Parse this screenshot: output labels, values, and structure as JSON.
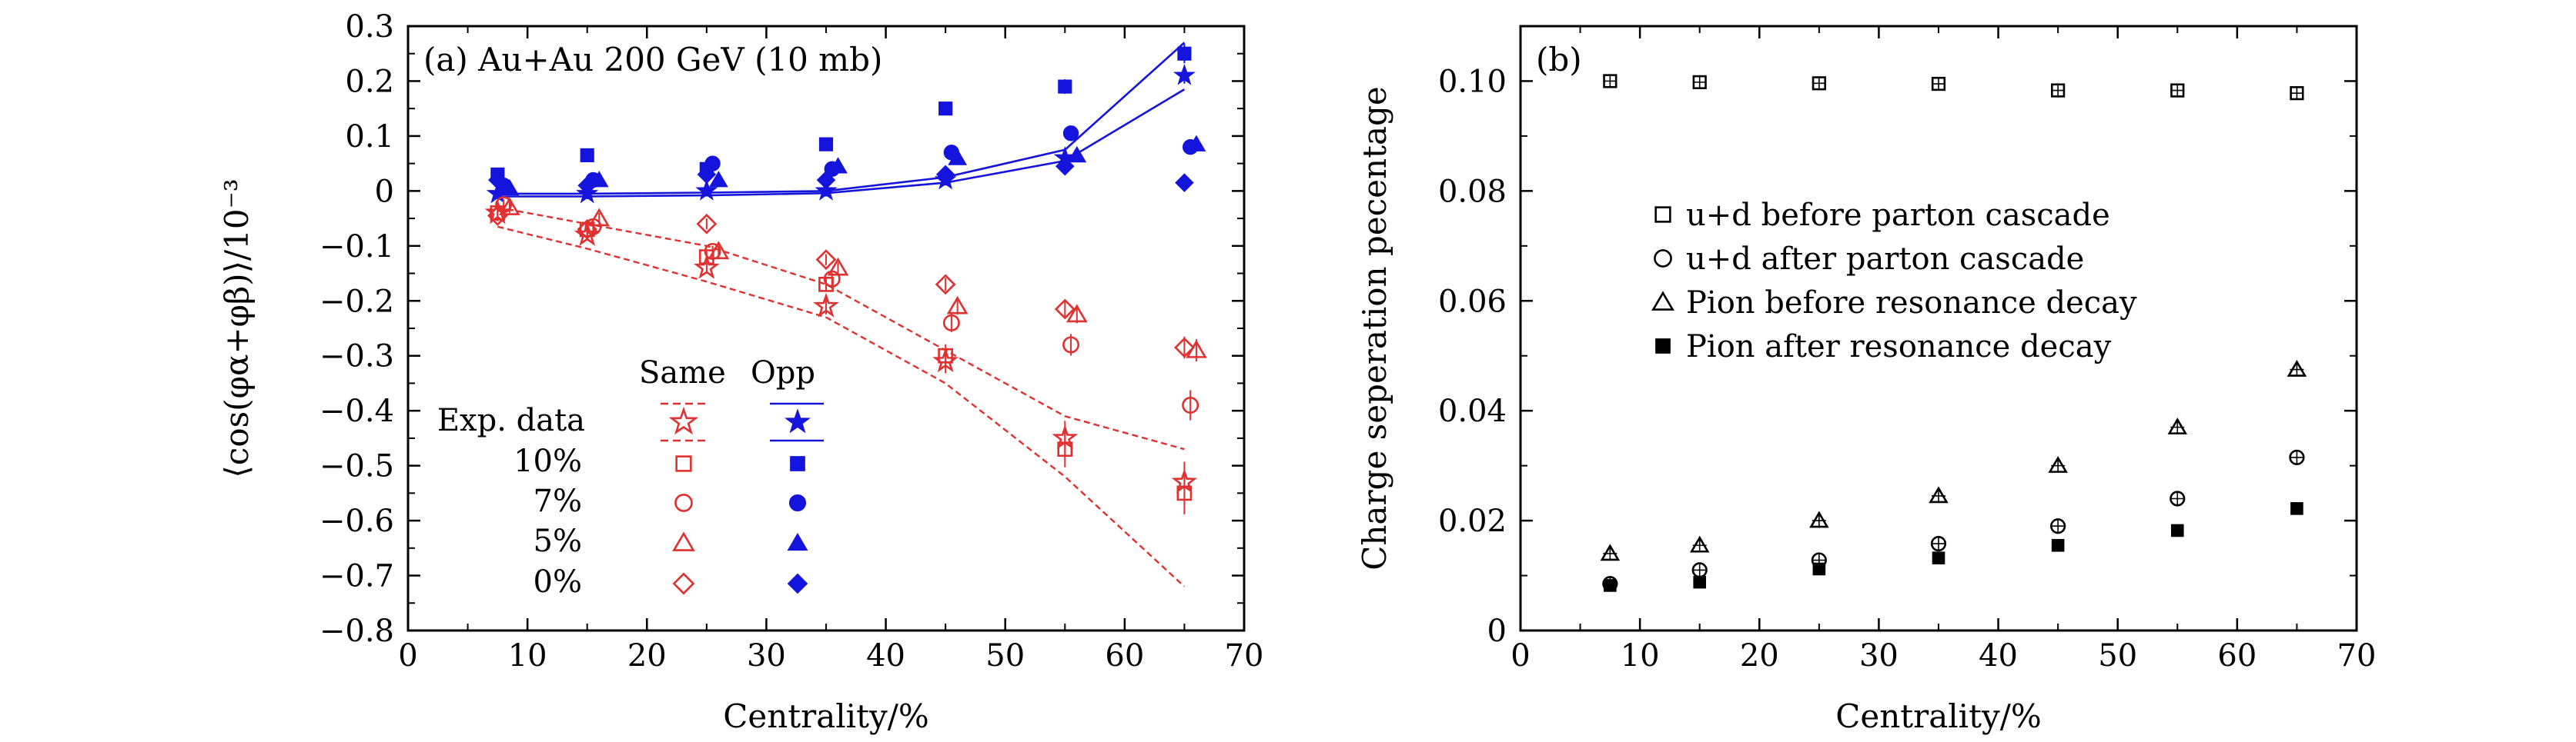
{
  "colors": {
    "red": "#e03030",
    "blue": "#1414dc",
    "black": "#000000"
  },
  "chart_data": [
    {
      "type": "scatter",
      "panel_label": "(a) Au+Au 200 GeV (10 mb)",
      "xlabel": "Centrality/%",
      "ylabel": "⟨cos(φα+φβ)⟩/10⁻³",
      "xlim": [
        0,
        70
      ],
      "ylim": [
        -0.8,
        0.3
      ],
      "xticks": [
        0,
        10,
        20,
        30,
        40,
        50,
        60,
        70
      ],
      "xtick_labels": [
        "0",
        "10",
        "20",
        "30",
        "40",
        "50",
        "60",
        "70"
      ],
      "yticks": [
        -0.8,
        -0.7,
        -0.6,
        -0.5,
        -0.4,
        -0.3,
        -0.2,
        -0.1,
        0,
        0.1,
        0.2,
        0.3
      ],
      "ytick_labels": [
        "−0.8",
        "−0.7",
        "−0.6",
        "−0.5",
        "−0.4",
        "−0.3",
        "−0.2",
        "−0.1",
        "0",
        "0.1",
        "0.2",
        "0.3"
      ],
      "legend": {
        "col_same": "Same",
        "col_opp": "Opp",
        "rows": [
          "Exp. data",
          "10%",
          "7%",
          "5%",
          "0%"
        ]
      },
      "series": [
        {
          "name": "Exp. data Same",
          "color": "red",
          "marker": "star-open",
          "x": [
            7.5,
            15,
            25,
            35,
            45,
            55,
            65
          ],
          "y": [
            -0.04,
            -0.08,
            -0.14,
            -0.21,
            -0.31,
            -0.45,
            -0.53
          ]
        },
        {
          "name": "Exp. data Same band upper",
          "color": "red",
          "marker": "dashed-line",
          "x": [
            7.5,
            15,
            25,
            35,
            45,
            55,
            65
          ],
          "y": [
            -0.03,
            -0.06,
            -0.1,
            -0.17,
            -0.29,
            -0.41,
            -0.47
          ]
        },
        {
          "name": "Exp. data Same band lower",
          "color": "red",
          "marker": "dashed-line",
          "x": [
            7.5,
            15,
            25,
            35,
            45,
            55,
            65
          ],
          "y": [
            -0.065,
            -0.105,
            -0.165,
            -0.23,
            -0.35,
            -0.52,
            -0.72
          ]
        },
        {
          "name": "Exp. data Opp",
          "color": "blue",
          "marker": "star-filled",
          "x": [
            7.5,
            15,
            25,
            35,
            45,
            55,
            65
          ],
          "y": [
            -0.005,
            -0.005,
            0.0,
            0.0,
            0.02,
            0.06,
            0.21
          ]
        },
        {
          "name": "Exp. data Opp band upper",
          "color": "blue",
          "marker": "solid-line",
          "x": [
            7.5,
            15,
            25,
            35,
            45,
            55,
            65
          ],
          "y": [
            -0.005,
            -0.005,
            -0.003,
            0.0,
            0.025,
            0.075,
            0.27
          ]
        },
        {
          "name": "Exp. data Opp band lower",
          "color": "blue",
          "marker": "solid-line",
          "x": [
            7.5,
            15,
            25,
            35,
            45,
            55,
            65
          ],
          "y": [
            -0.01,
            -0.01,
            -0.008,
            -0.004,
            0.015,
            0.055,
            0.185
          ]
        },
        {
          "name": "10% Same",
          "color": "red",
          "marker": "square-open",
          "x": [
            7.5,
            15,
            25,
            35,
            45,
            55,
            65
          ],
          "y": [
            -0.04,
            -0.07,
            -0.12,
            -0.17,
            -0.3,
            -0.47,
            -0.55
          ]
        },
        {
          "name": "10% Opp",
          "color": "blue",
          "marker": "square-filled",
          "x": [
            7.5,
            15,
            25,
            35,
            45,
            55,
            65
          ],
          "y": [
            0.03,
            0.065,
            0.04,
            0.085,
            0.15,
            0.19,
            0.25
          ]
        },
        {
          "name": "7% Same",
          "color": "red",
          "marker": "circle-open",
          "x": [
            8,
            15.5,
            25.5,
            35.5,
            45.5,
            55.5,
            65.5
          ],
          "y": [
            -0.025,
            -0.065,
            -0.11,
            -0.16,
            -0.24,
            -0.28,
            -0.39
          ]
        },
        {
          "name": "7% Opp",
          "color": "blue",
          "marker": "circle-filled",
          "x": [
            8,
            15.5,
            25.5,
            35.5,
            45.5,
            55.5,
            65.5
          ],
          "y": [
            0.01,
            0.02,
            0.05,
            0.04,
            0.07,
            0.105,
            0.08
          ]
        },
        {
          "name": "5% Same",
          "color": "red",
          "marker": "triangle-open",
          "x": [
            8.5,
            16,
            26,
            36,
            46,
            56,
            66
          ],
          "y": [
            -0.03,
            -0.05,
            -0.11,
            -0.14,
            -0.21,
            -0.225,
            -0.29
          ]
        },
        {
          "name": "5% Opp",
          "color": "blue",
          "marker": "triangle-filled",
          "x": [
            8.5,
            16,
            26,
            36,
            46,
            56,
            66
          ],
          "y": [
            0.005,
            0.02,
            0.02,
            0.045,
            0.06,
            0.065,
            0.085
          ]
        },
        {
          "name": "0% Same",
          "color": "red",
          "marker": "diamond-open",
          "x": [
            7.5,
            15,
            25,
            35,
            45,
            55,
            65
          ],
          "y": [
            -0.045,
            -0.07,
            -0.06,
            -0.125,
            -0.17,
            -0.215,
            -0.285
          ]
        },
        {
          "name": "0% Opp",
          "color": "blue",
          "marker": "diamond-filled",
          "x": [
            7.5,
            15,
            25,
            35,
            45,
            55,
            65
          ],
          "y": [
            0.02,
            0.01,
            0.03,
            0.02,
            0.03,
            0.045,
            0.015
          ]
        }
      ]
    },
    {
      "type": "scatter",
      "panel_label": "(b)",
      "xlabel": "Centrality/%",
      "ylabel": "Charge seperation pecentage",
      "xlim": [
        0,
        70
      ],
      "ylim": [
        0,
        0.11
      ],
      "xticks": [
        0,
        10,
        20,
        30,
        40,
        50,
        60,
        70
      ],
      "xtick_labels": [
        "0",
        "10",
        "20",
        "30",
        "40",
        "50",
        "60",
        "70"
      ],
      "yticks": [
        0,
        0.02,
        0.04,
        0.06,
        0.08,
        0.1
      ],
      "ytick_labels": [
        "0",
        "0.02",
        "0.04",
        "0.06",
        "0.08",
        "0.10"
      ],
      "series": [
        {
          "name": "u+d before parton cascade",
          "color": "black",
          "marker": "square-open",
          "x": [
            7.5,
            15,
            25,
            35,
            45,
            55,
            65
          ],
          "y": [
            0.1,
            0.0998,
            0.0996,
            0.0995,
            0.0983,
            0.0983,
            0.0978
          ]
        },
        {
          "name": "u+d after parton cascade",
          "color": "black",
          "marker": "circle-open",
          "x": [
            7.5,
            15,
            25,
            35,
            45,
            55,
            65
          ],
          "y": [
            0.0085,
            0.011,
            0.0128,
            0.0158,
            0.019,
            0.024,
            0.0315
          ]
        },
        {
          "name": "Pion before resonance decay",
          "color": "black",
          "marker": "triangle-open",
          "x": [
            7.5,
            15,
            25,
            35,
            45,
            55,
            65
          ],
          "y": [
            0.014,
            0.0155,
            0.02,
            0.0245,
            0.03,
            0.037,
            0.0475
          ]
        },
        {
          "name": "Pion after resonance decay",
          "color": "black",
          "marker": "square-filled",
          "x": [
            7.5,
            15,
            25,
            35,
            45,
            55,
            65
          ],
          "y": [
            0.0082,
            0.0088,
            0.0112,
            0.0132,
            0.0155,
            0.0182,
            0.0222
          ]
        }
      ]
    }
  ]
}
